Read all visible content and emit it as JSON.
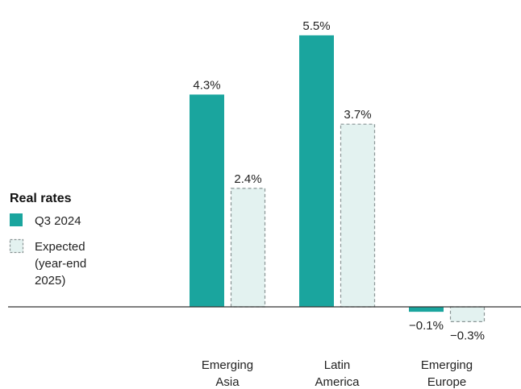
{
  "chart_data": {
    "type": "bar",
    "categories": [
      [
        "Emerging",
        "Asia"
      ],
      [
        "Latin",
        "America"
      ],
      [
        "Emerging",
        "Europe"
      ]
    ],
    "series": [
      {
        "name": "Q3 2024",
        "values": [
          4.3,
          5.5,
          -0.1
        ],
        "labels": [
          "4.3%",
          "5.5%",
          "−0.1%"
        ],
        "color": "#1aa59e",
        "style": "solid"
      },
      {
        "name": "Expected (year-end 2025)",
        "name_lines": [
          "Expected",
          "(year-end",
          "2025)"
        ],
        "values": [
          2.4,
          3.7,
          -0.3
        ],
        "labels": [
          "2.4%",
          "3.7%",
          "−0.3%"
        ],
        "color": "#e3f2f0",
        "stroke": "#8a9595",
        "style": "dashed"
      }
    ],
    "legend": {
      "title": "Real rates",
      "placement": "left"
    },
    "ylim": [
      -0.3,
      5.5
    ],
    "grid": false,
    "baseline": 0
  }
}
